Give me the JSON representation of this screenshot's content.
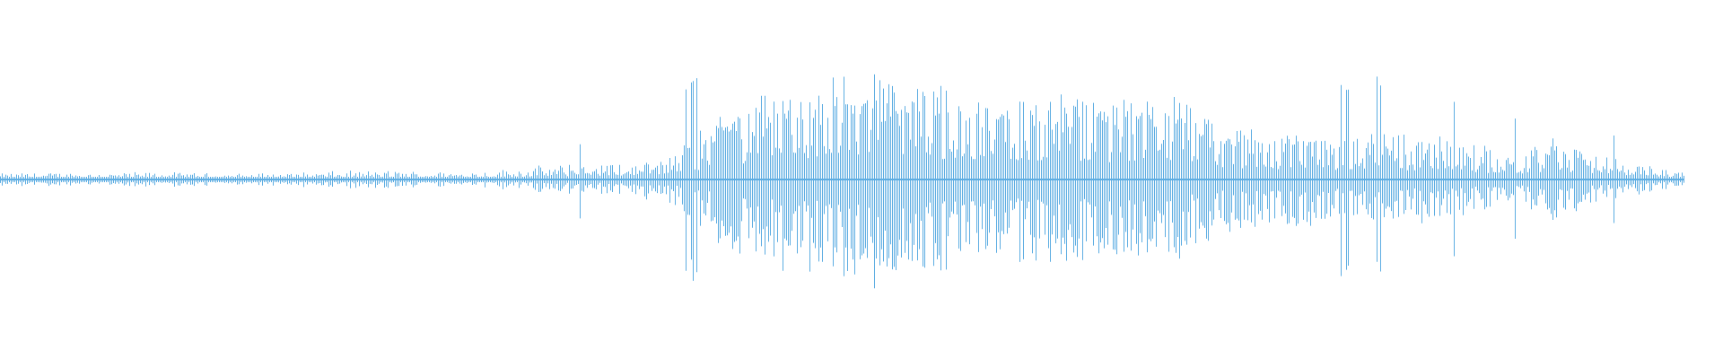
{
  "chart_data": {
    "type": "waveform",
    "title": "",
    "xlabel": "",
    "ylabel": "",
    "axes_visible": false,
    "grid": false,
    "color": "#5dade2",
    "background": "#ffffff",
    "ylim": [
      -1,
      1
    ],
    "envelope_amplitude": [
      0.06,
      0.07,
      0.07,
      0.07,
      0.07,
      0.06,
      0.06,
      0.07,
      0.08,
      0.09,
      0.08,
      0.08,
      0.1,
      0.14,
      0.16,
      0.18,
      0.28,
      0.57,
      0.8,
      0.93,
      0.98,
      1.0,
      0.91,
      0.85,
      0.82,
      0.8,
      0.8,
      0.77,
      0.77,
      0.51,
      0.45,
      0.45,
      0.4,
      0.43,
      0.43,
      0.34,
      0.25,
      0.4,
      0.23,
      0.17,
      0.06
    ]
  }
}
